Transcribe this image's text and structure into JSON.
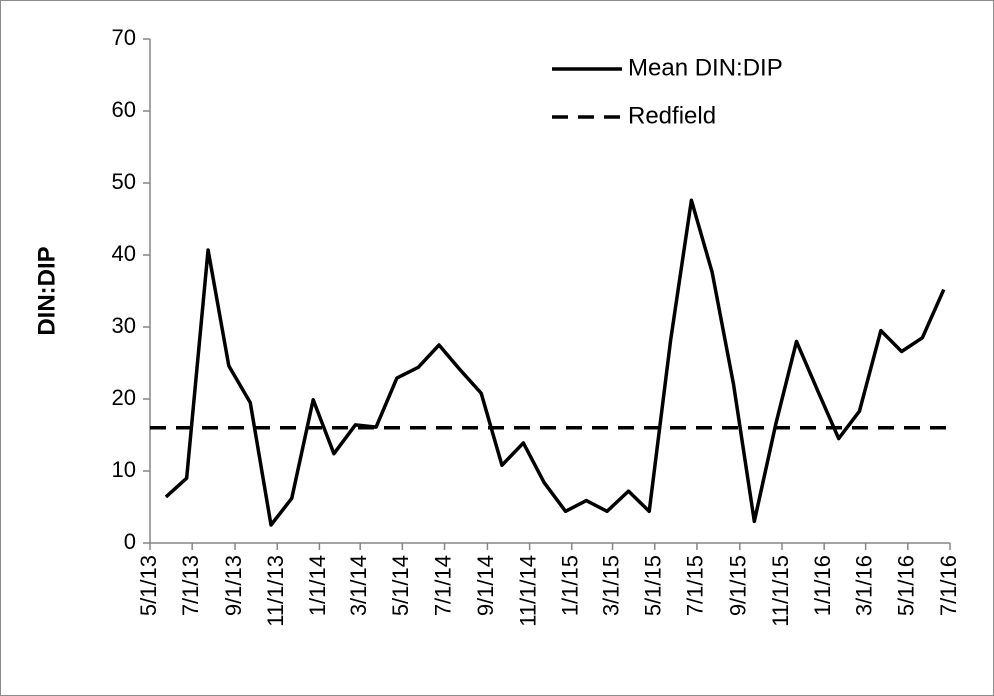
{
  "chart_data": {
    "type": "line",
    "y_label": "DIN:DIP",
    "xlim": [
      41395,
      42552
    ],
    "xticks": [
      {
        "value": 41395,
        "label": "5/1/13"
      },
      {
        "value": 41456,
        "label": "7/1/13"
      },
      {
        "value": 41518,
        "label": "9/1/13"
      },
      {
        "value": 41579,
        "label": "11/1/13"
      },
      {
        "value": 41640,
        "label": "1/1/14"
      },
      {
        "value": 41699,
        "label": "3/1/14"
      },
      {
        "value": 41760,
        "label": "5/1/14"
      },
      {
        "value": 41821,
        "label": "7/1/14"
      },
      {
        "value": 41883,
        "label": "9/1/14"
      },
      {
        "value": 41944,
        "label": "11/1/14"
      },
      {
        "value": 42005,
        "label": "1/1/15"
      },
      {
        "value": 42064,
        "label": "3/1/15"
      },
      {
        "value": 42125,
        "label": "5/1/15"
      },
      {
        "value": 42186,
        "label": "7/1/15"
      },
      {
        "value": 42248,
        "label": "9/1/15"
      },
      {
        "value": 42309,
        "label": "11/1/15"
      },
      {
        "value": 42370,
        "label": "1/1/16"
      },
      {
        "value": 42430,
        "label": "3/1/16"
      },
      {
        "value": 42491,
        "label": "5/1/16"
      },
      {
        "value": 42552,
        "label": "7/1/16"
      }
    ],
    "ylim": [
      0,
      70
    ],
    "yticks": [
      0,
      10,
      20,
      30,
      40,
      50,
      60,
      70
    ],
    "legend": "top-right",
    "series": [
      {
        "name": "Mean DIN:DIP",
        "color": "#000000",
        "dash": false,
        "x": [
          41418,
          41448,
          41479,
          41509,
          41540,
          41570,
          41600,
          41631,
          41661,
          41692,
          41722,
          41752,
          41783,
          41813,
          41844,
          41874,
          41904,
          41935,
          41965,
          41996,
          42026,
          42056,
          42087,
          42117,
          42148,
          42178,
          42208,
          42239,
          42269,
          42300,
          42330,
          42360,
          42391,
          42421,
          42452,
          42482,
          42512,
          42543
        ],
        "values": [
          6.4,
          9.0,
          40.7,
          24.6,
          19.5,
          2.5,
          6.2,
          19.9,
          12.4,
          16.4,
          16.1,
          22.9,
          24.4,
          27.5,
          24.0,
          20.8,
          10.8,
          13.9,
          8.4,
          4.4,
          5.9,
          4.4,
          7.2,
          4.4,
          28.2,
          47.6,
          37.6,
          22.0,
          3.0,
          16.5,
          28.0,
          21.3,
          14.5,
          18.3,
          29.5,
          26.6,
          28.5,
          35.2
        ]
      },
      {
        "name": "Redfield",
        "color": "#000000",
        "dash": true,
        "x": [
          41395,
          42552
        ],
        "values": [
          16,
          16
        ]
      }
    ]
  }
}
